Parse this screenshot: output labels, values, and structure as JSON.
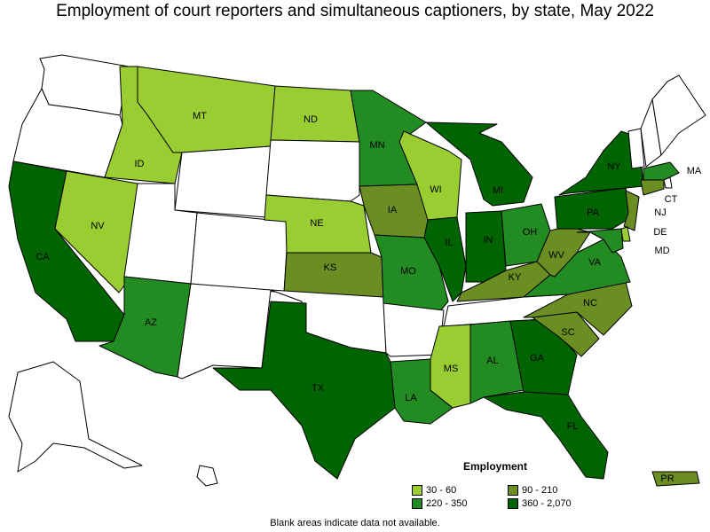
{
  "title": "Employment of court reporters and simultaneous captioners, by state, May 2022",
  "legend": {
    "title": "Employment",
    "bins": [
      {
        "label": "30 - 60",
        "color": "#9acd32"
      },
      {
        "label": "90 - 210",
        "color": "#6b8e23"
      },
      {
        "label": "220 - 350",
        "color": "#228b22"
      },
      {
        "label": "360 - 2,070",
        "color": "#006400"
      }
    ]
  },
  "no_data_color": "#ffffff",
  "footnote": "Blank areas indicate data not available.",
  "states": {
    "WA": {
      "label": "",
      "bin": null
    },
    "OR": {
      "label": "",
      "bin": null
    },
    "CA": {
      "label": "CA",
      "bin": 3
    },
    "NV": {
      "label": "NV",
      "bin": 0
    },
    "ID": {
      "label": "ID",
      "bin": 0
    },
    "MT": {
      "label": "MT",
      "bin": 0
    },
    "WY": {
      "label": "",
      "bin": null
    },
    "UT": {
      "label": "",
      "bin": null
    },
    "AZ": {
      "label": "AZ",
      "bin": 2
    },
    "CO": {
      "label": "",
      "bin": null
    },
    "NM": {
      "label": "",
      "bin": null
    },
    "ND": {
      "label": "ND",
      "bin": 0
    },
    "SD": {
      "label": "",
      "bin": null
    },
    "NE": {
      "label": "NE",
      "bin": 0
    },
    "KS": {
      "label": "KS",
      "bin": 1
    },
    "OK": {
      "label": "",
      "bin": null
    },
    "TX": {
      "label": "TX",
      "bin": 3
    },
    "MN": {
      "label": "MN",
      "bin": 2
    },
    "IA": {
      "label": "IA",
      "bin": 1
    },
    "MO": {
      "label": "MO",
      "bin": 2
    },
    "AR": {
      "label": "",
      "bin": null
    },
    "LA": {
      "label": "LA",
      "bin": 2
    },
    "WI": {
      "label": "WI",
      "bin": 0
    },
    "IL": {
      "label": "IL",
      "bin": 3
    },
    "MS": {
      "label": "MS",
      "bin": 0
    },
    "MI": {
      "label": "MI",
      "bin": 3
    },
    "IN": {
      "label": "IN",
      "bin": 3
    },
    "OH": {
      "label": "OH",
      "bin": 2
    },
    "KY": {
      "label": "KY",
      "bin": 1
    },
    "TN": {
      "label": "",
      "bin": null
    },
    "AL": {
      "label": "AL",
      "bin": 2
    },
    "GA": {
      "label": "GA",
      "bin": 3
    },
    "FL": {
      "label": "FL",
      "bin": 3
    },
    "SC": {
      "label": "SC",
      "bin": 1
    },
    "NC": {
      "label": "NC",
      "bin": 1
    },
    "VA": {
      "label": "VA",
      "bin": 2
    },
    "WV": {
      "label": "WV",
      "bin": 1
    },
    "PA": {
      "label": "PA",
      "bin": 3
    },
    "NY": {
      "label": "NY",
      "bin": 3
    },
    "VT": {
      "label": "",
      "bin": null
    },
    "NH": {
      "label": "",
      "bin": null
    },
    "ME": {
      "label": "",
      "bin": null
    },
    "MA": {
      "label": "MA",
      "bin": 2
    },
    "RI": {
      "label": "",
      "bin": null
    },
    "CT": {
      "label": "CT",
      "bin": 1
    },
    "NJ": {
      "label": "NJ",
      "bin": 1
    },
    "DE": {
      "label": "DE",
      "bin": 0
    },
    "MD": {
      "label": "MD",
      "bin": 2
    },
    "AK": {
      "label": "",
      "bin": null
    },
    "HI": {
      "label": "",
      "bin": null
    },
    "PR": {
      "label": "PR",
      "bin": 1
    }
  }
}
